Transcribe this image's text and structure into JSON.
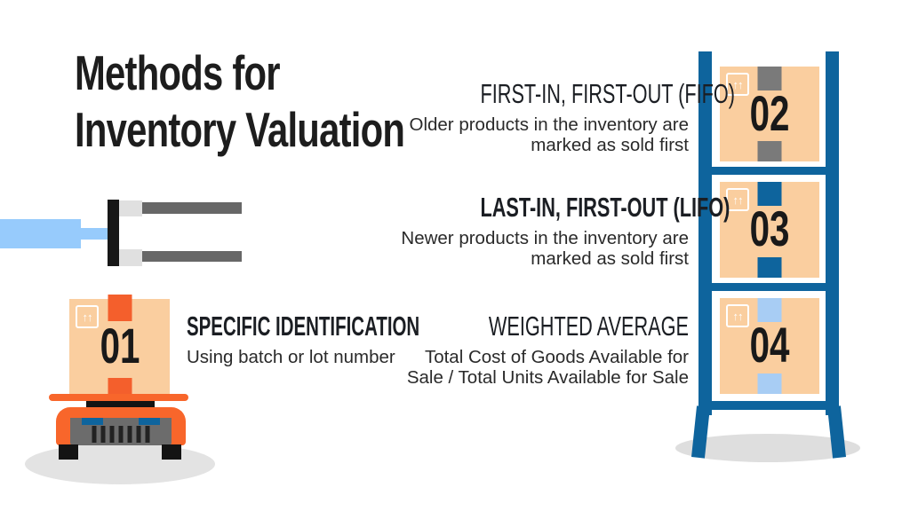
{
  "title": {
    "line1": "Methods for",
    "line2": "Inventory Valuation"
  },
  "methods": {
    "specific_identification": {
      "number": "01",
      "heading": "SPECIFIC IDENTIFICATION",
      "description": "Using batch or lot number"
    },
    "fifo": {
      "number": "02",
      "heading": "FIRST-IN, FIRST-OUT (FIFO)",
      "description": "Older products in the inventory are marked as sold first"
    },
    "lifo": {
      "number": "03",
      "heading": "LAST-IN, FIRST-OUT (LIFO)",
      "description": "Newer products in the inventory are marked as sold first"
    },
    "weighted_average": {
      "number": "04",
      "heading": "WEIGHTED AVERAGE",
      "description": "Total Cost of Goods Available for Sale / Total Units Available for Sale"
    }
  },
  "icons": {
    "this_side_up": "↑↑"
  },
  "colors": {
    "text_dark": "#1d1d1d",
    "shelf_blue": "#0e649d",
    "box_peach": "#face9f",
    "robot_orange": "#f8662b",
    "tape_orange": "#f45f2c",
    "tape_gray": "#7a7a7a",
    "tape_dark_blue": "#0e649d",
    "tape_light_blue": "#a8cdf4",
    "forklift_light_blue": "#97cbfc",
    "fork_gray": "#676767",
    "shadow_gray": "#e3e3e3"
  }
}
